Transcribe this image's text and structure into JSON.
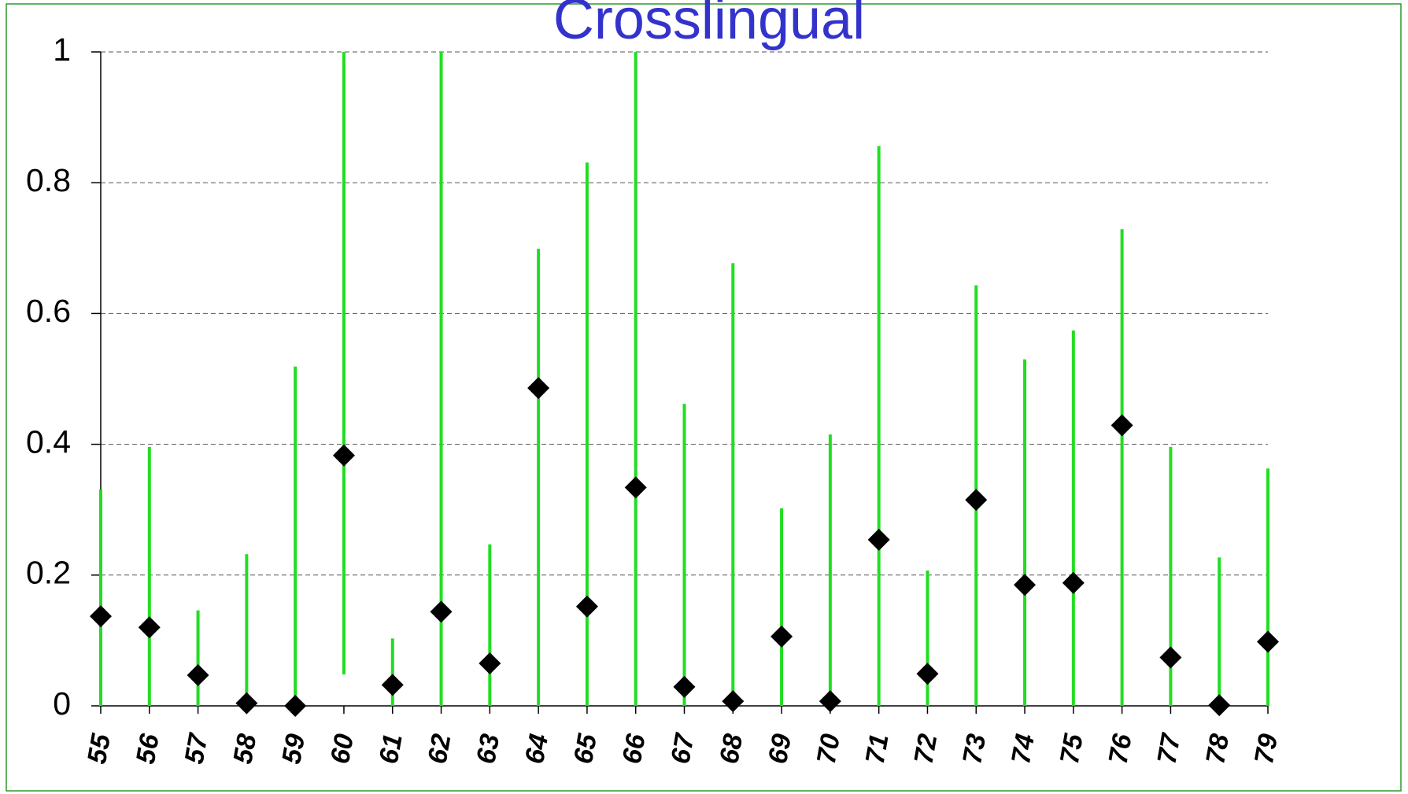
{
  "chart_data": {
    "type": "dot_range",
    "title": "Crosslingual",
    "categories": [
      "55",
      "56",
      "57",
      "58",
      "59",
      "60",
      "61",
      "62",
      "63",
      "64",
      "65",
      "66",
      "67",
      "68",
      "69",
      "70",
      "71",
      "72",
      "73",
      "74",
      "75",
      "76",
      "77",
      "78",
      "79"
    ],
    "values": [
      0.137,
      0.12,
      0.047,
      0.004,
      0,
      0.383,
      0.032,
      0.144,
      0.065,
      0.486,
      0.152,
      0.334,
      0.029,
      0.007,
      0.106,
      0.007,
      0.254,
      0.049,
      0.315,
      0.185,
      0.188,
      0.429,
      0.074,
      0.001,
      0.098
    ],
    "low": [
      0,
      0,
      0,
      0,
      0,
      0.048,
      0,
      0,
      0,
      0,
      0,
      0,
      0,
      0,
      0,
      0,
      0,
      0,
      0,
      0,
      0,
      0,
      0,
      0,
      0
    ],
    "high": [
      0.331,
      0.396,
      0.146,
      0.232,
      0.519,
      1,
      0.103,
      1,
      0.247,
      0.699,
      0.831,
      1,
      0.462,
      0.677,
      0.302,
      0.415,
      0.856,
      0.207,
      0.643,
      0.53,
      0.574,
      0.729,
      0.396,
      0.227,
      0.363
    ],
    "color": "#22dd22",
    "marker_color": "#000000",
    "ylim": [
      0,
      1
    ],
    "yticks": [
      0,
      0.2,
      0.4,
      0.6,
      0.8,
      1
    ],
    "grid": true
  }
}
